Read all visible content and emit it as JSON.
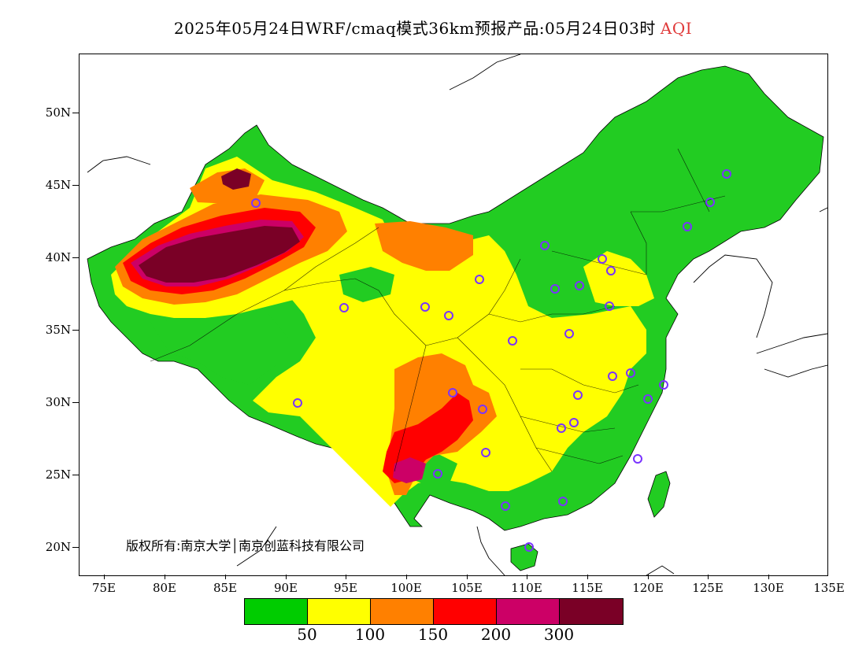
{
  "title": {
    "text": "2025年05月24日WRF/cmaq模式36km预报产品:05月24日03时",
    "variable": "AQI",
    "variable_color": "#e03a3a"
  },
  "axes": {
    "y_labels": [
      "50N",
      "45N",
      "40N",
      "35N",
      "30N",
      "25N",
      "20N"
    ],
    "x_labels": [
      "75E",
      "80E",
      "85E",
      "90E",
      "95E",
      "100E",
      "105E",
      "110E",
      "115E",
      "120E",
      "125E",
      "130E",
      "135E"
    ]
  },
  "copyright": "版权所有:南京大学│南京创蓝科技有限公司",
  "legend": {
    "colors": [
      "#00cc00",
      "#ffff00",
      "#ff8000",
      "#ff0000",
      "#cc0066",
      "#7a0026"
    ],
    "labels": [
      "50",
      "100",
      "150",
      "200",
      "300"
    ]
  },
  "map": {
    "land_color": "#22cc22",
    "stations_color": "#7a33ff"
  }
}
